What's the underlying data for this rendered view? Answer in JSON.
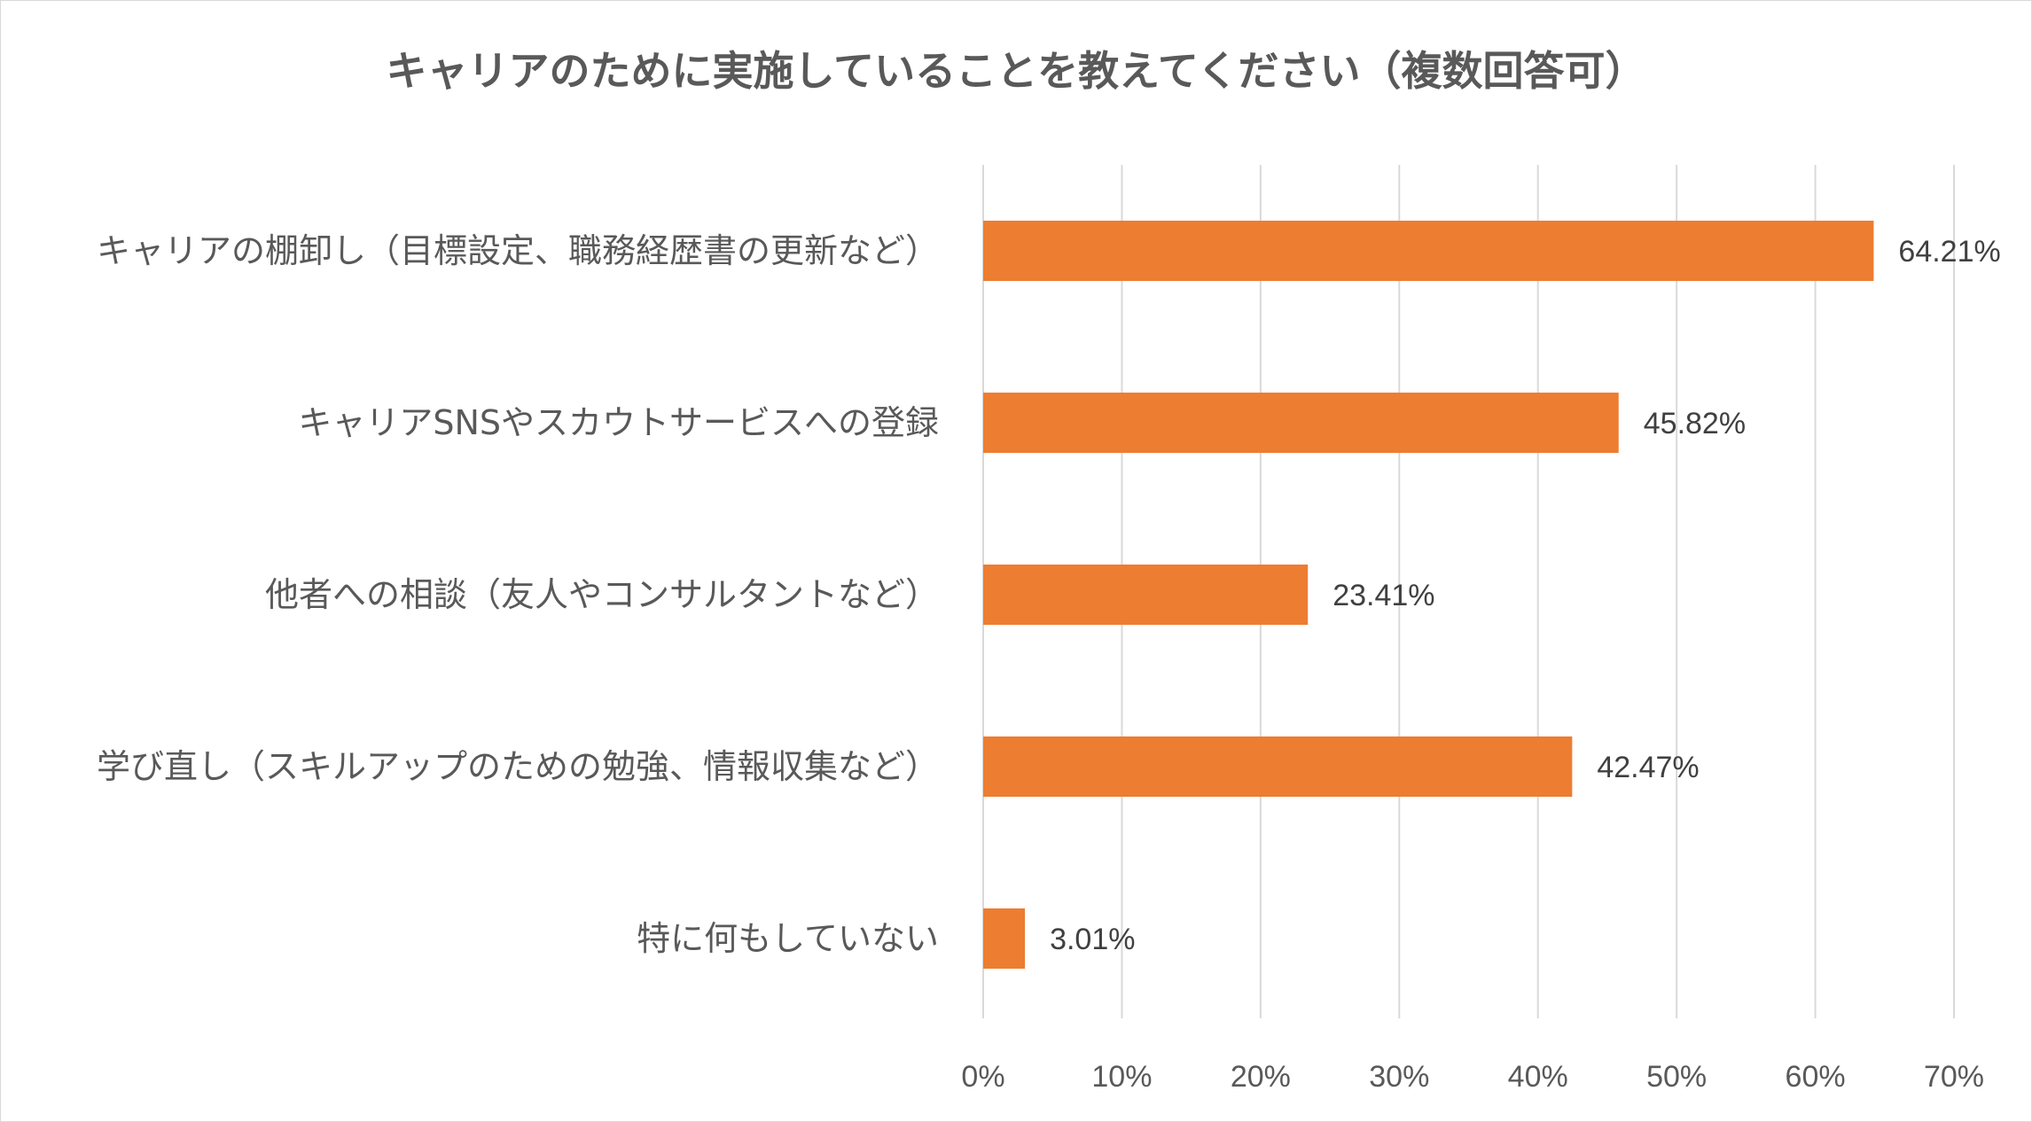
{
  "chart_data": {
    "type": "bar",
    "orientation": "horizontal",
    "title": "キャリアのために実施していることを教えてください（複数回答可）",
    "categories": [
      "キャリアの棚卸し（目標設定、職務経歴書の更新など）",
      "キャリアSNSやスカウトサービスへの登録",
      "他者への相談（友人やコンサルタントなど）",
      "学び直し（スキルアップのための勉強、情報収集など）",
      "特に何もしていない"
    ],
    "values": [
      64.21,
      45.82,
      23.41,
      42.47,
      3.01
    ],
    "value_labels": [
      "64.21%",
      "45.82%",
      "23.41%",
      "42.47%",
      "3.01%"
    ],
    "xlim": [
      0,
      70
    ],
    "ticks": [
      0,
      10,
      20,
      30,
      40,
      50,
      60,
      70
    ],
    "tick_labels": [
      "0%",
      "10%",
      "20%",
      "30%",
      "40%",
      "50%",
      "60%",
      "70%"
    ],
    "xlabel": "",
    "ylabel": "",
    "grid": true,
    "legend": "none",
    "bar_color": "#ED7D31"
  }
}
